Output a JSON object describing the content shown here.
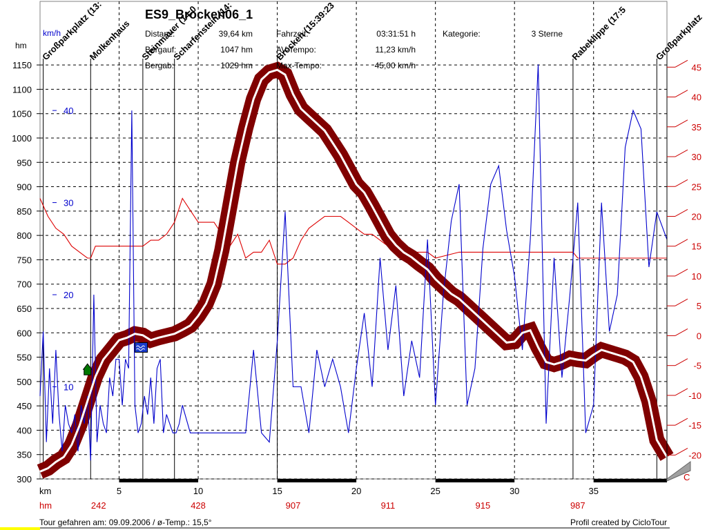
{
  "chart_data": {
    "type": "line",
    "title": "ES9_Brocken06_1",
    "stats": [
      {
        "label": "Distanz",
        "value": "39,64 km"
      },
      {
        "label": "Bergauf",
        "value": "1047 hm"
      },
      {
        "label": "Bergab",
        "value": "1029 hm"
      },
      {
        "label": "Fahrzeit",
        "value": "03:31:51 h"
      },
      {
        "label": "AV-Tempo",
        "value": "11,23 km/h"
      },
      {
        "label": "Max-Tempo",
        "value": "45,00 km/h"
      },
      {
        "label": "Kategorie",
        "value": "3 Sterne"
      }
    ],
    "left_unit": "hm",
    "speed_unit": "km/h",
    "xunit": "km",
    "xunit2": "hm",
    "right_bottom_label": "C",
    "elevation_ticks": [
      1150,
      1100,
      1050,
      1000,
      950,
      900,
      850,
      800,
      750,
      700,
      650,
      600,
      550,
      500,
      450,
      400,
      350,
      300
    ],
    "speed_ticks": [
      40,
      30,
      20,
      10
    ],
    "x_ticks": [
      5,
      10,
      15,
      20,
      25,
      30,
      35
    ],
    "grade_ticks": [
      45,
      40,
      35,
      30,
      25,
      20,
      15,
      10,
      5,
      0,
      -5,
      -10,
      -15,
      -20
    ],
    "ylim": [
      300,
      1170
    ],
    "xlim": [
      0,
      39.64
    ],
    "speed_lim": [
      0,
      46
    ],
    "grade_lim": [
      -24,
      47
    ],
    "cumulative_hm": [
      {
        "x": 3.7,
        "label": "242"
      },
      {
        "x": 10,
        "label": "428"
      },
      {
        "x": 16,
        "label": "907"
      },
      {
        "x": 22,
        "label": "911"
      },
      {
        "x": 28,
        "label": "915"
      },
      {
        "x": 34,
        "label": "987"
      }
    ],
    "waypoints": [
      {
        "x": 0.2,
        "label": "Großparkplatz (13:"
      },
      {
        "x": 3.2,
        "label": "Molkenhaus"
      },
      {
        "x": 6.5,
        "label": "Steinmauer (14:0"
      },
      {
        "x": 8.5,
        "label": "Scharfenstein (14:"
      },
      {
        "x": 15.0,
        "label": "Brocken (15:39:23"
      },
      {
        "x": 33.7,
        "label": "Rabeklippe (17:5"
      },
      {
        "x": 39.0,
        "label": "Großparkplatz"
      }
    ],
    "series": [
      {
        "key": "elevation",
        "color": "#800000",
        "x": [
          0,
          0.5,
          1,
          1.5,
          2,
          2.5,
          3,
          3.5,
          4,
          4.5,
          5,
          5.5,
          6,
          6.5,
          7,
          7.5,
          8,
          8.5,
          9,
          9.5,
          10,
          10.5,
          11,
          11.5,
          12,
          12.5,
          13,
          13.5,
          14,
          14.5,
          15,
          15.5,
          16,
          16.5,
          17,
          17.5,
          18,
          18.5,
          19,
          19.5,
          20,
          20.5,
          21,
          21.5,
          22,
          22.5,
          23,
          23.5,
          24,
          24.5,
          25,
          25.5,
          26,
          26.5,
          27,
          27.5,
          28,
          28.5,
          29,
          29.5,
          30,
          30.5,
          31,
          31.5,
          32,
          32.5,
          33,
          33.5,
          34,
          34.5,
          35,
          35.5,
          36,
          36.5,
          37,
          37.5,
          38,
          38.5,
          39,
          39.64
        ],
        "values": [
          315,
          322,
          335,
          345,
          370,
          410,
          460,
          510,
          545,
          565,
          585,
          590,
          598,
          595,
          585,
          590,
          594,
          598,
          606,
          615,
          635,
          660,
          700,
          770,
          860,
          950,
          1020,
          1080,
          1120,
          1135,
          1140,
          1130,
          1090,
          1060,
          1045,
          1030,
          1015,
          990,
          965,
          935,
          905,
          888,
          860,
          830,
          800,
          780,
          765,
          755,
          742,
          730,
          710,
          695,
          680,
          670,
          655,
          640,
          625,
          610,
          595,
          580,
          582,
          600,
          605,
          570,
          540,
          535,
          540,
          548,
          545,
          543,
          555,
          565,
          560,
          555,
          550,
          540,
          510,
          460,
          380,
          345
        ]
      },
      {
        "key": "speed",
        "color": "#0000cc",
        "x": [
          0,
          0.2,
          0.4,
          0.6,
          0.8,
          1.0,
          1.2,
          1.4,
          1.6,
          1.8,
          2.0,
          2.2,
          2.4,
          2.6,
          2.8,
          3.0,
          3.2,
          3.4,
          3.6,
          3.8,
          4.0,
          4.2,
          4.4,
          4.6,
          4.8,
          5.0,
          5.2,
          5.4,
          5.6,
          5.8,
          6.0,
          6.2,
          6.4,
          6.6,
          6.8,
          7.0,
          7.2,
          7.4,
          7.6,
          7.8,
          8.0,
          8.2,
          8.4,
          8.6,
          8.8,
          9.0,
          9.5,
          10,
          10.5,
          11,
          11.5,
          12,
          12.5,
          13,
          13.5,
          14,
          14.5,
          15,
          15.5,
          16,
          16.5,
          17,
          17.5,
          18,
          18.5,
          19,
          19.5,
          20,
          20.5,
          21,
          21.5,
          22,
          22.5,
          23,
          23.5,
          24,
          24.5,
          25,
          25.5,
          26,
          26.5,
          27,
          27.5,
          28,
          28.5,
          29,
          29.5,
          30,
          30.5,
          31,
          31.5,
          32,
          32.5,
          33,
          33.5,
          34,
          34.5,
          35,
          35.5,
          36,
          36.5,
          37,
          37.5,
          38,
          38.5,
          39,
          39.64
        ],
        "values": [
          9,
          16,
          4,
          12,
          6,
          14,
          7,
          3,
          8,
          6,
          5,
          7,
          3,
          8,
          6,
          9,
          2,
          20,
          4,
          8,
          6,
          5,
          11,
          9,
          13,
          13,
          8,
          13,
          12,
          40,
          8,
          5,
          6,
          9,
          7,
          11,
          6,
          12,
          13,
          5,
          7,
          6,
          5,
          5,
          6,
          8,
          5,
          5,
          5,
          5,
          5,
          5,
          5,
          5,
          14,
          5,
          4,
          15,
          29,
          10,
          10,
          5,
          14,
          10,
          13,
          10,
          5,
          12,
          18,
          10,
          24,
          14,
          21,
          9,
          15,
          11,
          26,
          8,
          20,
          28,
          32,
          8,
          12,
          25,
          32,
          34,
          27,
          22,
          14,
          26,
          45,
          6,
          24,
          11,
          20,
          30,
          5,
          8,
          30,
          16,
          20,
          36,
          40,
          38,
          23,
          29,
          26
        ]
      },
      {
        "key": "grade",
        "color": "#dd0000",
        "x": [
          0,
          0.5,
          1,
          1.5,
          2,
          2.5,
          3,
          3.2,
          3.5,
          4,
          4.5,
          5,
          5.5,
          6,
          6.5,
          7,
          7.5,
          8,
          8.5,
          9,
          9.5,
          10,
          10.5,
          11,
          11.5,
          12,
          12.5,
          13,
          13.5,
          14,
          14.5,
          15,
          15.5,
          16,
          16.5,
          17,
          17.5,
          18,
          18.5,
          19,
          19.5,
          20,
          20.5,
          21,
          21.5,
          22,
          22.5,
          23,
          23.5,
          24,
          24.5,
          25,
          26.5,
          30,
          33.7,
          34,
          39.64
        ],
        "values": [
          23,
          20,
          18,
          17,
          15,
          14,
          13,
          13,
          15,
          15,
          15,
          15,
          15,
          15,
          15,
          16,
          16,
          17,
          19,
          23,
          21,
          19,
          19,
          19,
          17,
          15,
          17,
          13,
          14,
          14,
          16,
          12,
          12,
          13,
          16,
          18,
          19,
          20,
          20,
          20,
          19,
          18,
          17,
          17,
          16,
          15,
          14,
          14,
          14,
          14,
          14,
          13,
          14,
          14,
          14,
          13,
          13
        ]
      }
    ]
  },
  "footer": {
    "left": "Tour gefahren am: 09.09.2006  /  ø-Temp.: 15,5°",
    "right": "Profil created by CicloTour"
  }
}
